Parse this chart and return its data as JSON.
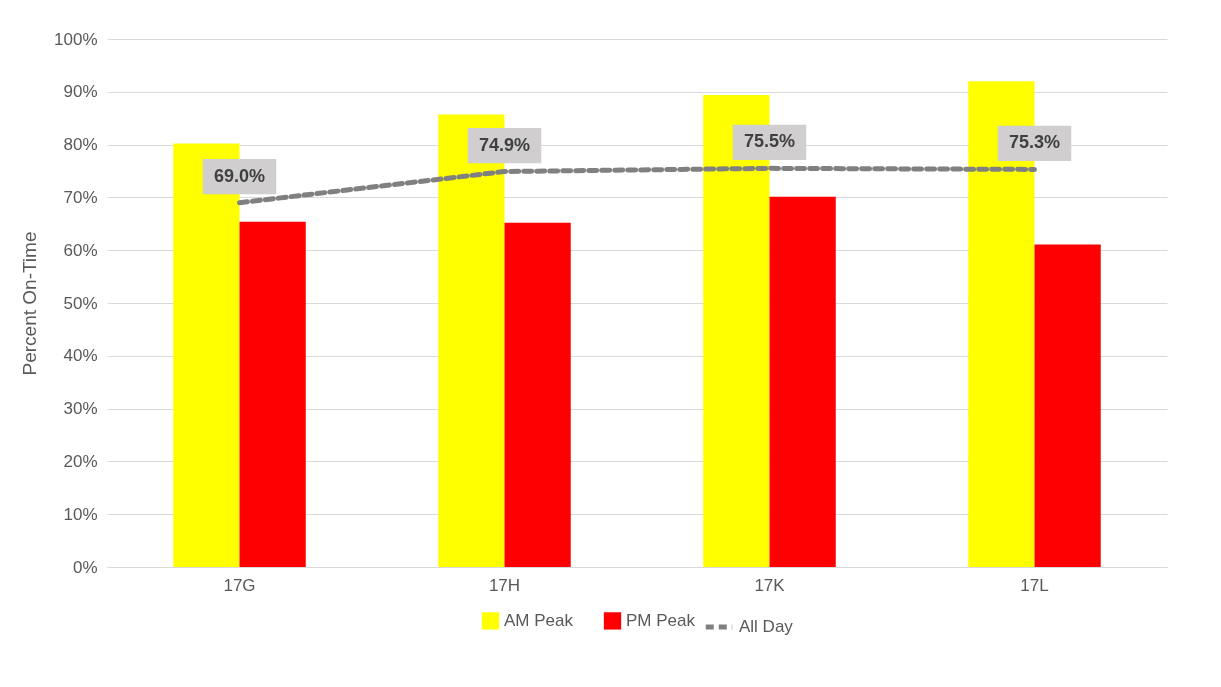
{
  "chart_data": {
    "type": "bar",
    "ylabel": "Percent On-Time",
    "categories": [
      "17G",
      "17H",
      "17K",
      "17L"
    ],
    "series": [
      {
        "name": "AM Peak",
        "color": "#ffff00",
        "values": [
          80.2,
          85.7,
          89.4,
          92.0
        ]
      },
      {
        "name": "PM Peak",
        "color": "#ff0000",
        "values": [
          65.4,
          65.2,
          70.1,
          61.1
        ]
      },
      {
        "name": "All Day",
        "type": "line",
        "color": "#808080",
        "line_style": "dashed",
        "marker": "none",
        "values": [
          69.0,
          74.9,
          75.5,
          75.3
        ],
        "value_labels": [
          "69.0%",
          "74.9%",
          "75.5%",
          "75.3%"
        ]
      }
    ],
    "ylim": [
      0,
      100
    ],
    "yticks": [
      {
        "value": 0,
        "label": "0%"
      },
      {
        "value": 10,
        "label": "10%"
      },
      {
        "value": 20,
        "label": "20%"
      },
      {
        "value": 30,
        "label": "30%"
      },
      {
        "value": 40,
        "label": "40%"
      },
      {
        "value": 50,
        "label": "50%"
      },
      {
        "value": 60,
        "label": "60%"
      },
      {
        "value": 70,
        "label": "70%"
      },
      {
        "value": 80,
        "label": "80%"
      },
      {
        "value": 90,
        "label": "90%"
      },
      {
        "value": 100,
        "label": "100%"
      }
    ],
    "grid": "y",
    "legend": "bottom"
  }
}
